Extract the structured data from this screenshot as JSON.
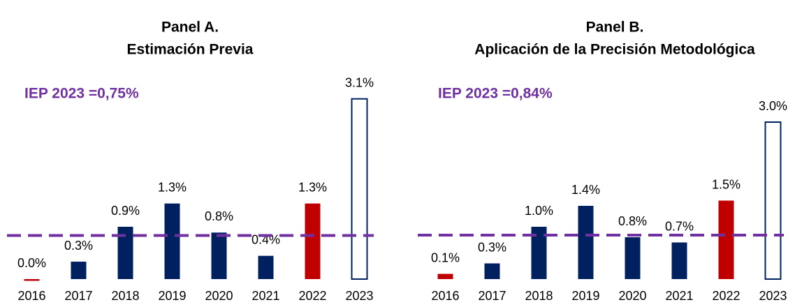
{
  "chart_data": [
    {
      "type": "bar",
      "title": "Panel A.",
      "subtitle": "Estimación Previa",
      "annotation": "IEP 2023 =0,75%",
      "reference_line": 0.75,
      "reference_color": "#7030a0",
      "categories": [
        "2016",
        "2017",
        "2018",
        "2019",
        "2020",
        "2021",
        "2022",
        "2023"
      ],
      "values": [
        -0.03,
        0.3,
        0.9,
        1.3,
        0.8,
        0.4,
        1.3,
        3.1
      ],
      "value_labels": [
        "0.0%",
        "0.3%",
        "0.9%",
        "1.3%",
        "0.8%",
        "0.4%",
        "1.3%",
        "3.1%"
      ],
      "colors": [
        "#c00000",
        "#002060",
        "#002060",
        "#002060",
        "#002060",
        "#002060",
        "#c00000",
        "#002060"
      ],
      "hollow": [
        false,
        false,
        false,
        false,
        false,
        false,
        false,
        true
      ],
      "ylim": [
        0,
        3.6
      ]
    },
    {
      "type": "bar",
      "title": "Panel B.",
      "subtitle": "Aplicación de la Precisión Metodológica",
      "annotation": "IEP 2023 =0,84%",
      "reference_line": 0.84,
      "reference_color": "#7030a0",
      "categories": [
        "2016",
        "2017",
        "2018",
        "2019",
        "2020",
        "2021",
        "2022",
        "2023"
      ],
      "values": [
        0.1,
        0.3,
        1.0,
        1.4,
        0.8,
        0.7,
        1.5,
        3.0
      ],
      "value_labels": [
        "0.1%",
        "0.3%",
        "1.0%",
        "1.4%",
        "0.8%",
        "0.7%",
        "1.5%",
        "3.0%"
      ],
      "colors": [
        "#c00000",
        "#002060",
        "#002060",
        "#002060",
        "#002060",
        "#002060",
        "#c00000",
        "#002060"
      ],
      "hollow": [
        false,
        false,
        false,
        false,
        false,
        false,
        false,
        true
      ],
      "ylim": [
        0,
        4
      ]
    }
  ]
}
